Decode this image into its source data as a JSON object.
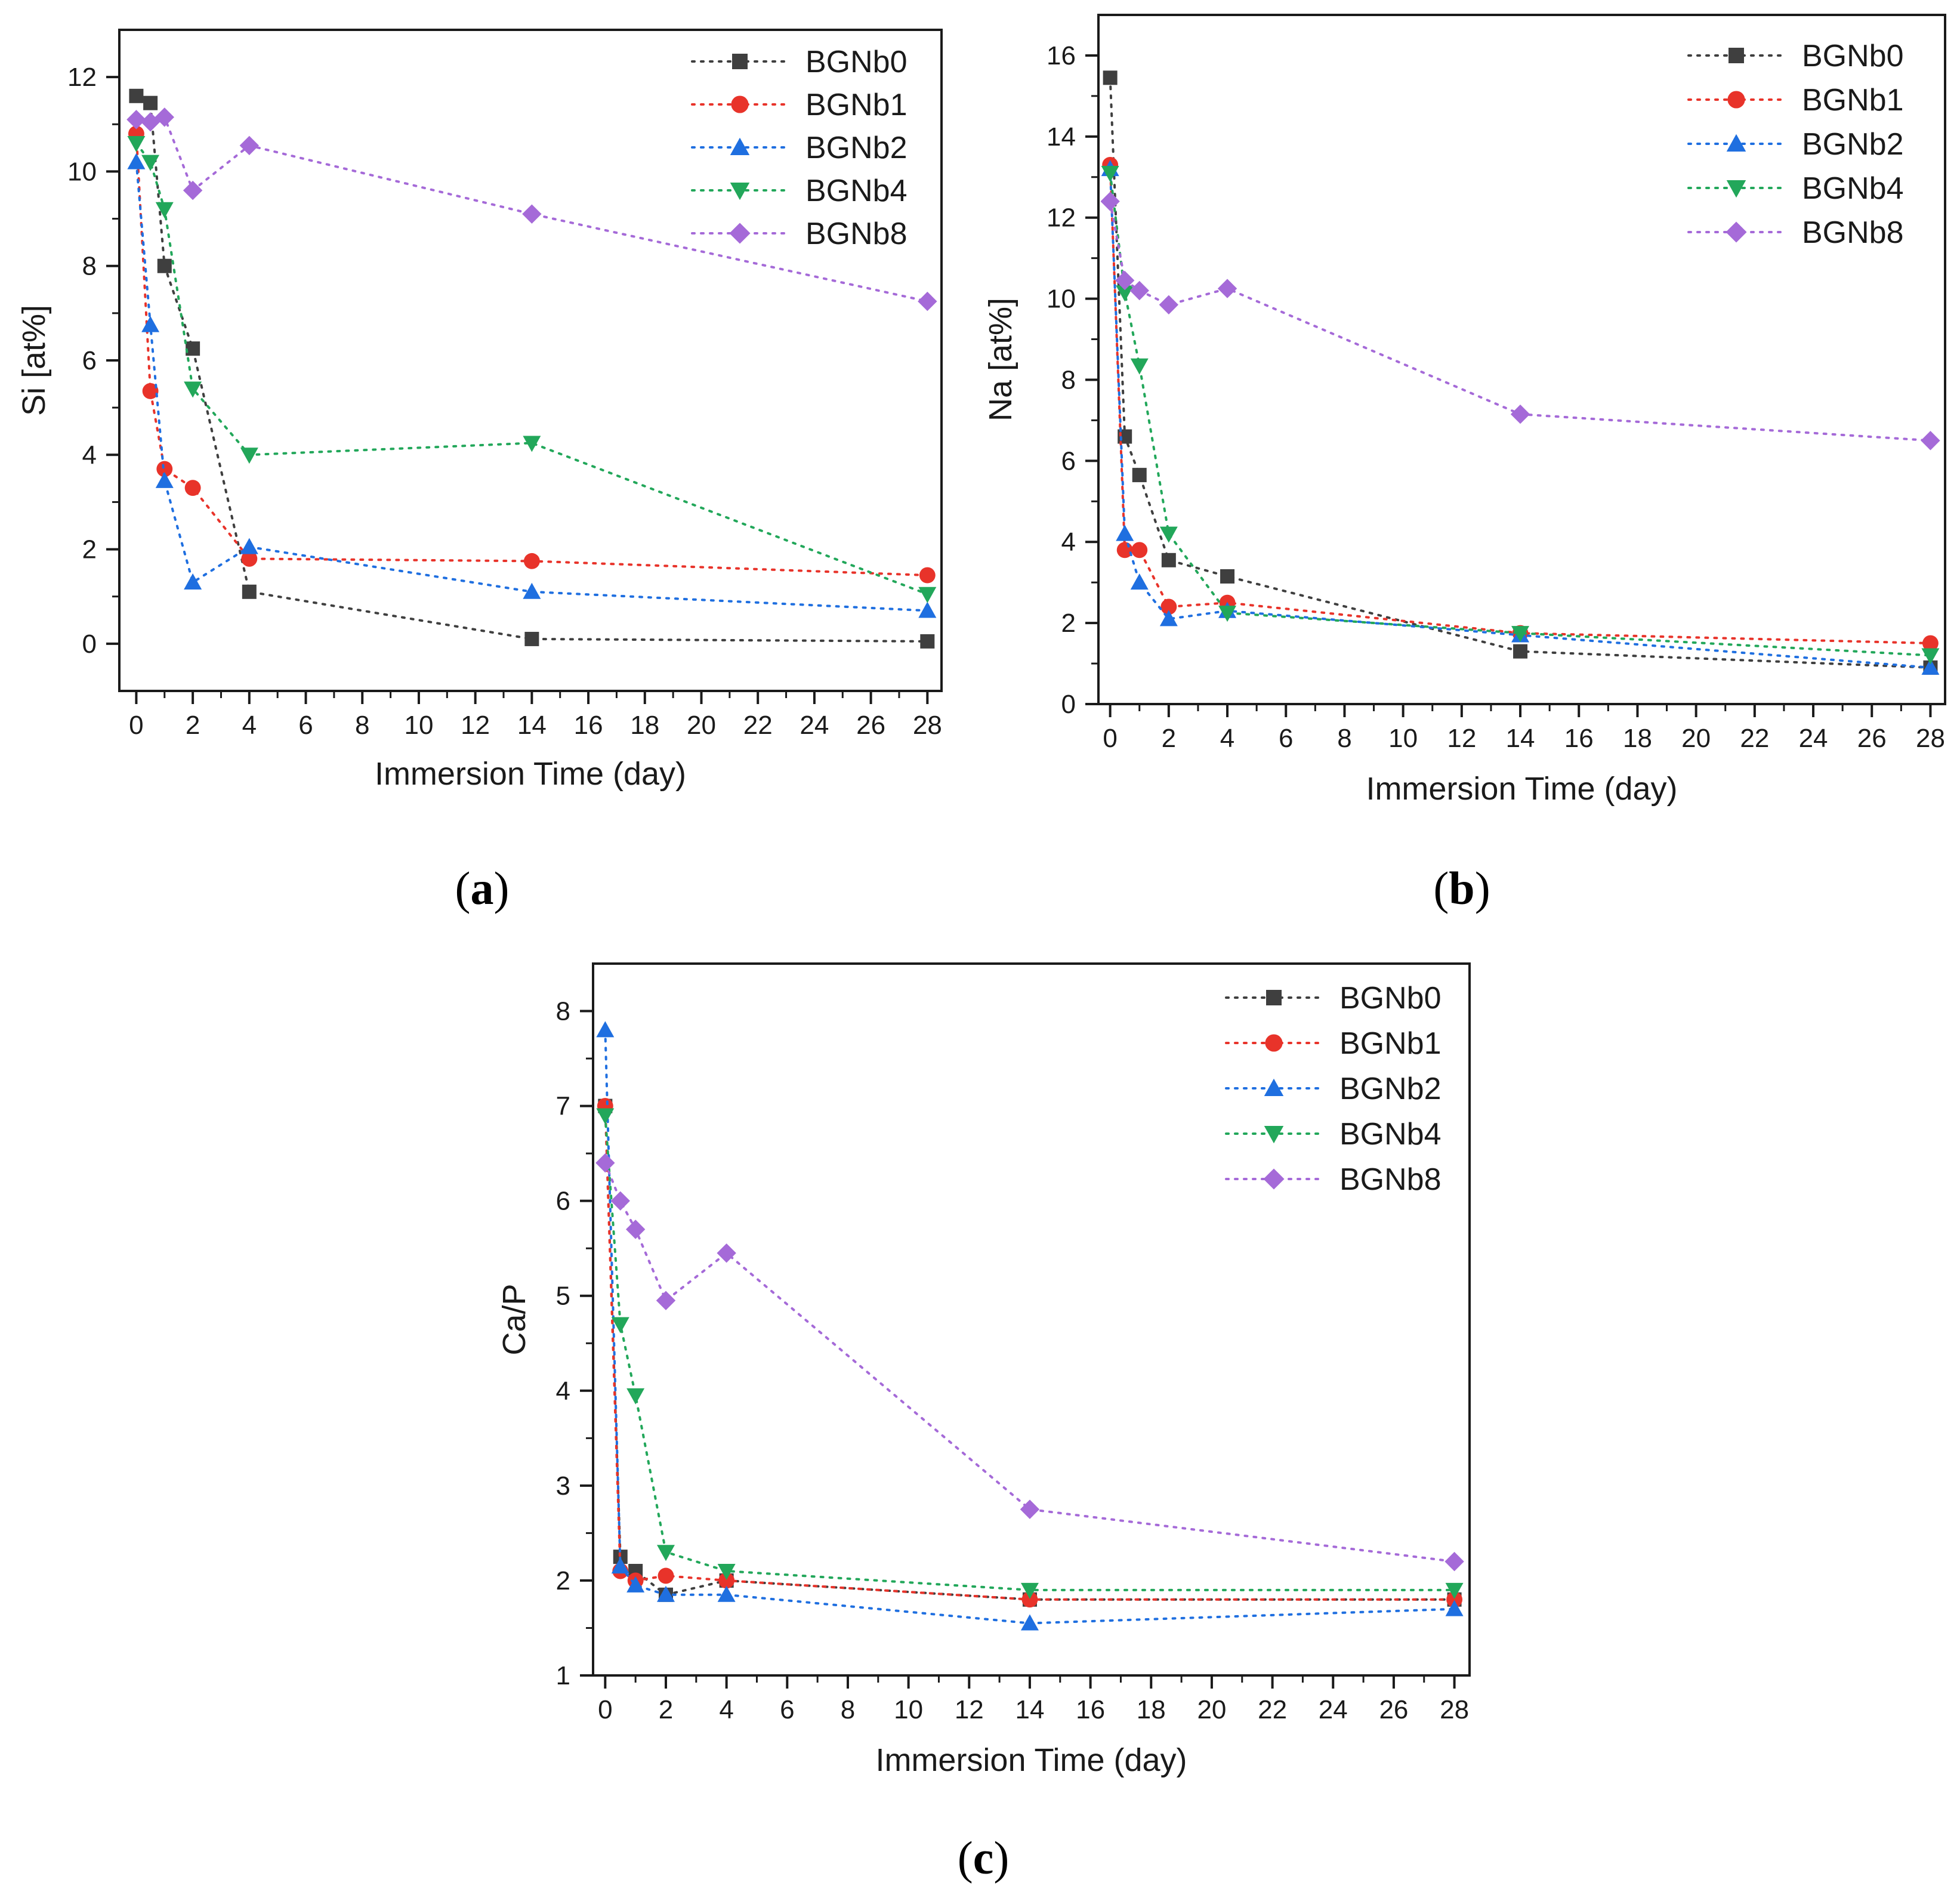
{
  "colors": {
    "BGNb0": "#3f3f3f",
    "BGNb1": "#e8332a",
    "BGNb2": "#1f6fe0",
    "BGNb4": "#22a75a",
    "BGNb8": "#a56ad8"
  },
  "chart_data": [
    {
      "id": "a",
      "type": "scatter",
      "panel_label": "a",
      "xlabel": "Immersion Time (day)",
      "ylabel": "Si [at%]",
      "xlim": [
        -0.6,
        28.5
      ],
      "ylim": [
        -1,
        13
      ],
      "xticks": [
        0,
        2,
        4,
        6,
        8,
        10,
        12,
        14,
        16,
        18,
        20,
        22,
        24,
        26,
        28
      ],
      "yticks": [
        0,
        2,
        4,
        6,
        8,
        10,
        12
      ],
      "legend_position": "top-right",
      "series": [
        {
          "name": "BGNb0",
          "marker": "square",
          "x": [
            0,
            0.5,
            1,
            2,
            4,
            14,
            28
          ],
          "y": [
            11.6,
            11.45,
            8.0,
            6.25,
            1.1,
            0.1,
            0.05
          ]
        },
        {
          "name": "BGNb1",
          "marker": "circle",
          "x": [
            0,
            0.5,
            1,
            2,
            4,
            14,
            28
          ],
          "y": [
            10.8,
            5.35,
            3.7,
            3.3,
            1.8,
            1.75,
            1.45
          ]
        },
        {
          "name": "BGNb2",
          "marker": "triangle-up",
          "x": [
            0,
            0.5,
            1,
            2,
            4,
            14,
            28
          ],
          "y": [
            10.2,
            6.75,
            3.45,
            1.3,
            2.05,
            1.1,
            0.7
          ]
        },
        {
          "name": "BGNb4",
          "marker": "triangle-down",
          "x": [
            0,
            0.5,
            1,
            2,
            4,
            14,
            28
          ],
          "y": [
            10.6,
            10.2,
            9.2,
            5.4,
            4.0,
            4.25,
            1.05
          ]
        },
        {
          "name": "BGNb8",
          "marker": "diamond",
          "x": [
            0,
            0.5,
            1,
            2,
            4,
            14,
            28
          ],
          "y": [
            11.1,
            11.05,
            11.15,
            9.6,
            10.55,
            9.1,
            7.25
          ]
        }
      ]
    },
    {
      "id": "b",
      "type": "scatter",
      "panel_label": "b",
      "xlabel": "Immersion Time (day)",
      "ylabel": "Na [at%]",
      "xlim": [
        -0.4,
        28.5
      ],
      "ylim": [
        0,
        17
      ],
      "xticks": [
        0,
        2,
        4,
        6,
        8,
        10,
        12,
        14,
        16,
        18,
        20,
        22,
        24,
        26,
        28
      ],
      "yticks": [
        0,
        2,
        4,
        6,
        8,
        10,
        12,
        14,
        16
      ],
      "legend_position": "top-right",
      "series": [
        {
          "name": "BGNb0",
          "marker": "square",
          "x": [
            0,
            0.5,
            1,
            2,
            4,
            14,
            28
          ],
          "y": [
            15.45,
            6.6,
            5.65,
            3.55,
            3.15,
            1.3,
            0.9
          ]
        },
        {
          "name": "BGNb1",
          "marker": "circle",
          "x": [
            0,
            0.5,
            1,
            2,
            4,
            14,
            28
          ],
          "y": [
            13.3,
            3.8,
            3.8,
            2.4,
            2.5,
            1.75,
            1.5
          ]
        },
        {
          "name": "BGNb2",
          "marker": "triangle-up",
          "x": [
            0,
            0.5,
            1,
            2,
            4,
            14,
            28
          ],
          "y": [
            13.2,
            4.2,
            3.0,
            2.1,
            2.3,
            1.7,
            0.9
          ]
        },
        {
          "name": "BGNb4",
          "marker": "triangle-down",
          "x": [
            0,
            0.5,
            1,
            2,
            4,
            14,
            28
          ],
          "y": [
            13.1,
            10.15,
            8.35,
            4.2,
            2.25,
            1.75,
            1.2
          ]
        },
        {
          "name": "BGNb8",
          "marker": "diamond",
          "x": [
            0,
            0.5,
            1,
            2,
            4,
            14,
            28
          ],
          "y": [
            12.4,
            10.45,
            10.2,
            9.85,
            10.25,
            7.15,
            6.5
          ]
        }
      ]
    },
    {
      "id": "c",
      "type": "scatter",
      "panel_label": "c",
      "xlabel": "Immersion Time (day)",
      "ylabel": "Ca/P",
      "xlim": [
        -0.4,
        28.5
      ],
      "ylim": [
        1,
        8.5
      ],
      "xticks": [
        0,
        2,
        4,
        6,
        8,
        10,
        12,
        14,
        16,
        18,
        20,
        22,
        24,
        26,
        28
      ],
      "yticks": [
        1,
        2,
        3,
        4,
        5,
        6,
        7,
        8
      ],
      "legend_position": "top-right",
      "series": [
        {
          "name": "BGNb0",
          "marker": "square",
          "x": [
            0,
            0.5,
            1,
            2,
            4,
            14,
            28
          ],
          "y": [
            7.0,
            2.25,
            2.1,
            1.85,
            2.0,
            1.8,
            1.8
          ]
        },
        {
          "name": "BGNb1",
          "marker": "circle",
          "x": [
            0,
            0.5,
            1,
            2,
            4,
            14,
            28
          ],
          "y": [
            7.0,
            2.1,
            2.0,
            2.05,
            2.0,
            1.8,
            1.8
          ]
        },
        {
          "name": "BGNb2",
          "marker": "triangle-up",
          "x": [
            0,
            0.5,
            1,
            2,
            4,
            14,
            28
          ],
          "y": [
            7.8,
            2.15,
            1.95,
            1.85,
            1.85,
            1.55,
            1.7
          ]
        },
        {
          "name": "BGNb4",
          "marker": "triangle-down",
          "x": [
            0,
            0.5,
            1,
            2,
            4,
            14,
            28
          ],
          "y": [
            6.9,
            4.7,
            3.95,
            2.3,
            2.1,
            1.9,
            1.9
          ]
        },
        {
          "name": "BGNb8",
          "marker": "diamond",
          "x": [
            0,
            0.5,
            1,
            2,
            4,
            14,
            28
          ],
          "y": [
            6.4,
            6.0,
            5.7,
            4.95,
            5.45,
            2.75,
            2.2
          ]
        }
      ]
    }
  ]
}
